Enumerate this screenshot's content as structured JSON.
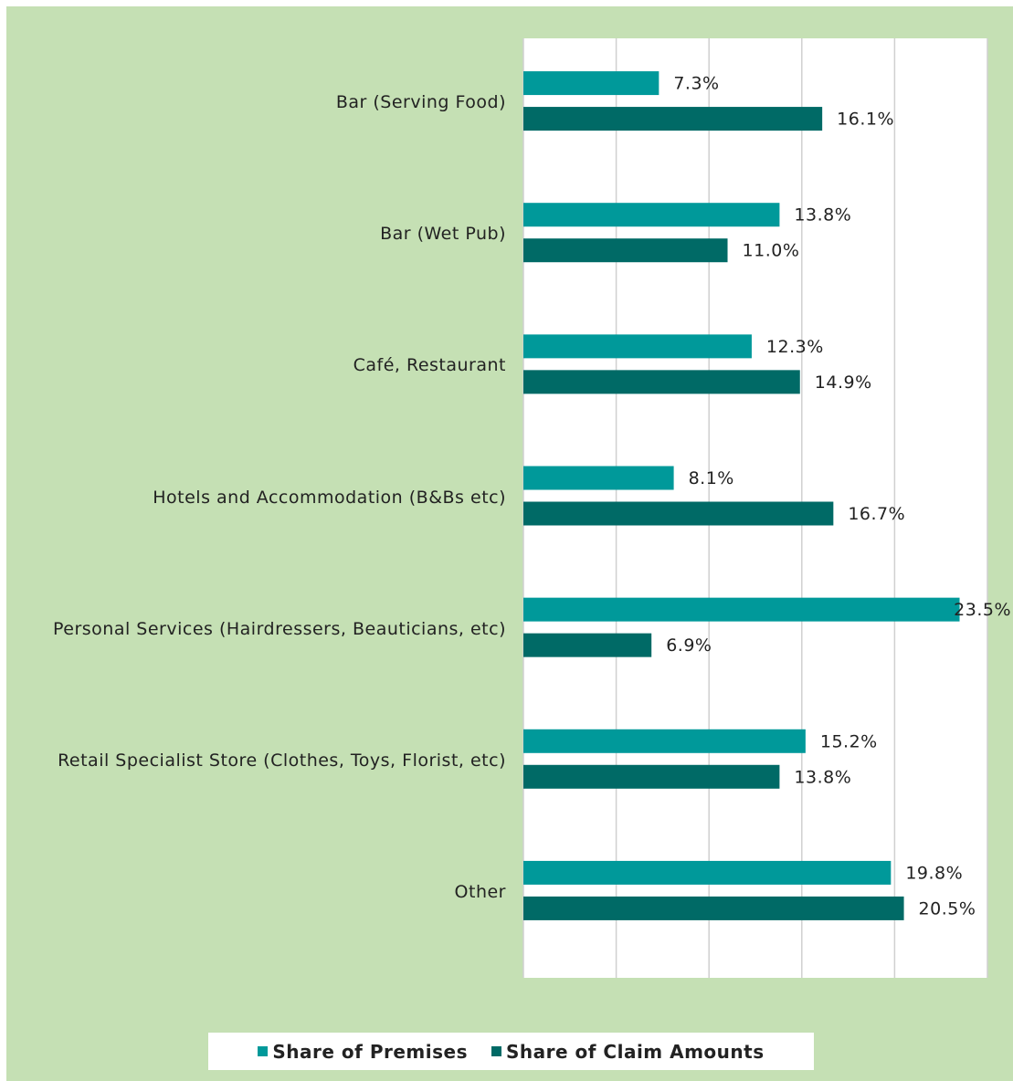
{
  "chart_data": {
    "type": "bar",
    "orientation": "horizontal",
    "categories": [
      "Bar (Serving Food)",
      "Bar (Wet Pub)",
      "Café, Restaurant",
      "Hotels and Accommodation (B&Bs etc)",
      "Personal Services (Hairdressers, Beauticians, etc)",
      "Retail Specialist Store (Clothes, Toys, Florist, etc)",
      "Other"
    ],
    "series": [
      {
        "name": "Share of Premises",
        "color": "#00999a",
        "values": [
          7.3,
          13.8,
          12.3,
          8.1,
          23.5,
          15.2,
          19.8
        ],
        "value_labels": [
          "7.3%",
          "13.8%",
          "12.3%",
          "8.1%",
          "23.5%",
          "15.2%",
          "19.8%"
        ]
      },
      {
        "name": "Share of Claim Amounts",
        "color": "#006a66",
        "values": [
          16.1,
          11.0,
          14.9,
          16.7,
          6.9,
          13.8,
          20.5
        ],
        "value_labels": [
          "16.1%",
          "11.0%",
          "14.9%",
          "16.7%",
          "6.9%",
          "13.8%",
          "20.5%"
        ]
      }
    ],
    "xlim": [
      0,
      25
    ],
    "xticks": [
      0,
      5,
      10,
      15,
      20,
      25
    ],
    "grid": true,
    "legend": "bottom"
  }
}
